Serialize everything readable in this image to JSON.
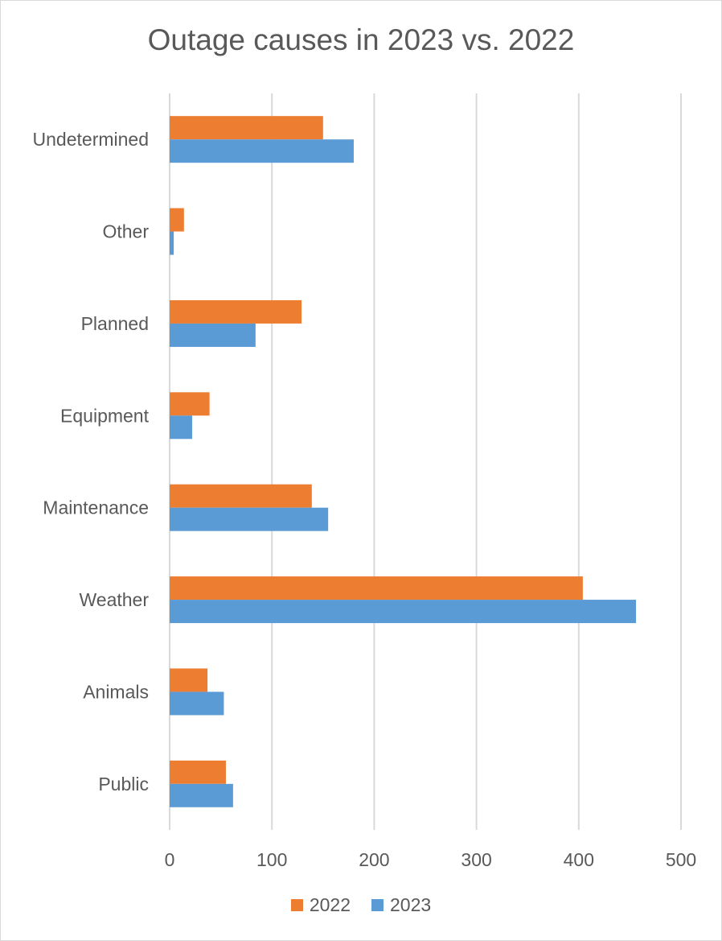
{
  "chart_data": {
    "type": "bar",
    "orientation": "horizontal",
    "title": "Outage causes in 2023 vs. 2022",
    "categories": [
      "Public",
      "Animals",
      "Weather",
      "Maintenance",
      "Equipment",
      "Planned",
      "Other",
      "Undetermined"
    ],
    "series": [
      {
        "name": "2022",
        "color": "#ed7d31",
        "values": [
          55,
          37,
          404,
          139,
          39,
          129,
          14,
          150
        ]
      },
      {
        "name": "2023",
        "color": "#5b9bd5",
        "values": [
          62,
          53,
          456,
          155,
          22,
          84,
          4,
          180
        ]
      }
    ],
    "xlim": [
      0,
      500
    ],
    "xticks": [
      "0",
      "100",
      "200",
      "300",
      "400",
      "500"
    ],
    "grid": true,
    "legend": "bottom"
  }
}
